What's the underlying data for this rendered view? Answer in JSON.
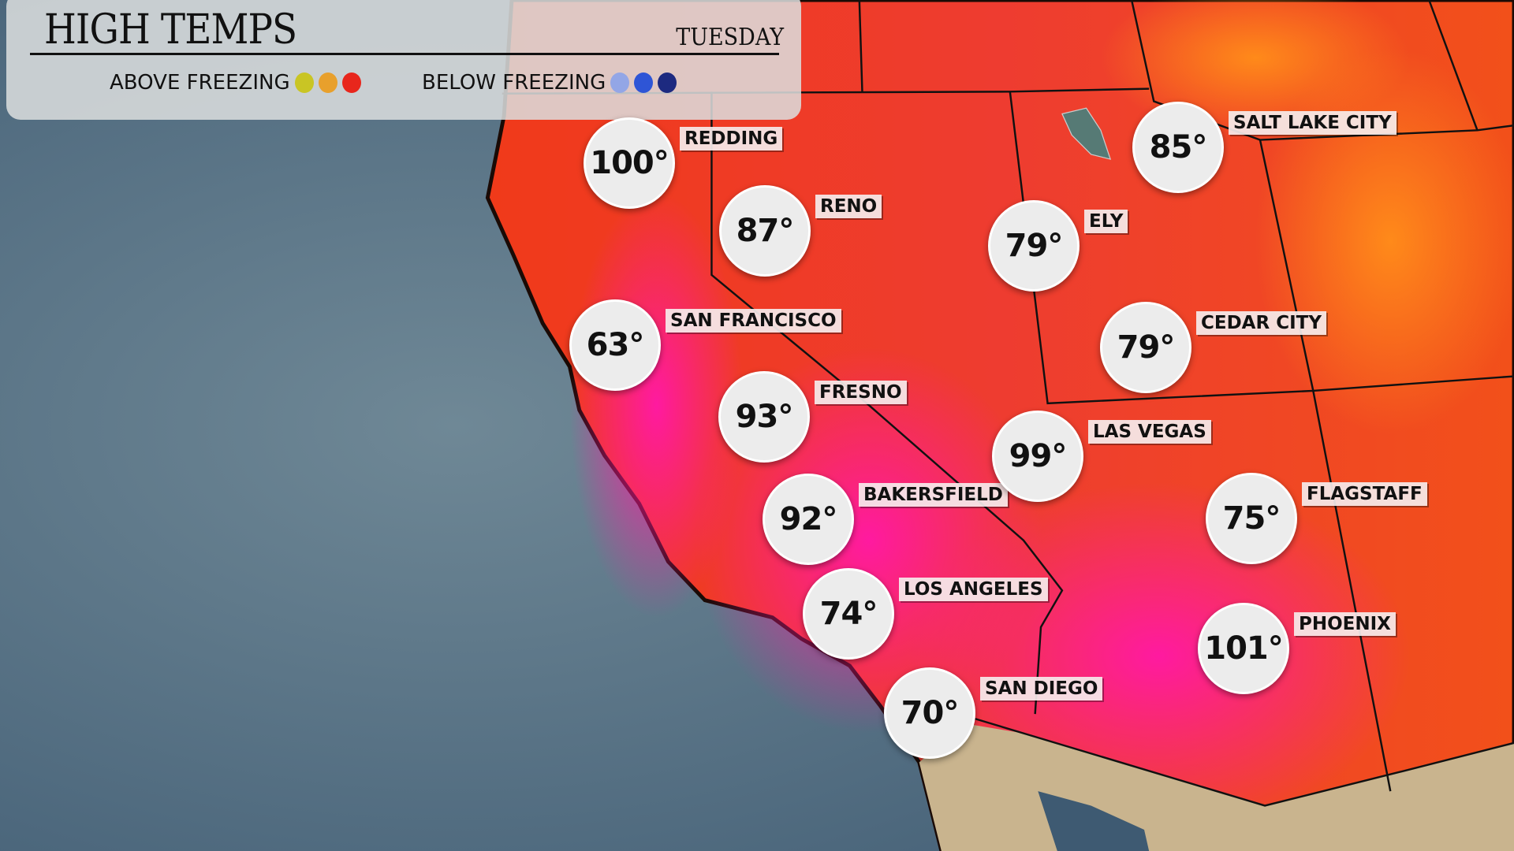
{
  "header": {
    "title": "HIGH TEMPS",
    "day": "TUESDAY"
  },
  "legend": {
    "above_label": "ABOVE FREEZING",
    "above_colors": [
      "#c9c524",
      "#e8a02c",
      "#e8261c"
    ],
    "below_label": "BELOW FREEZING",
    "below_colors": [
      "#93a6e6",
      "#2e55d6",
      "#1d2a80"
    ]
  },
  "cities": [
    {
      "name": "REDDING",
      "temp": "100°"
    },
    {
      "name": "RENO",
      "temp": "87°"
    },
    {
      "name": "SAN FRANCISCO",
      "temp": "63°"
    },
    {
      "name": "FRESNO",
      "temp": "93°"
    },
    {
      "name": "BAKERSFIELD",
      "temp": "92°"
    },
    {
      "name": "LOS ANGELES",
      "temp": "74°"
    },
    {
      "name": "SAN DIEGO",
      "temp": "70°"
    },
    {
      "name": "ELY",
      "temp": "79°"
    },
    {
      "name": "SALT LAKE CITY",
      "temp": "85°"
    },
    {
      "name": "CEDAR CITY",
      "temp": "79°"
    },
    {
      "name": "LAS VEGAS",
      "temp": "99°"
    },
    {
      "name": "FLAGSTAFF",
      "temp": "75°"
    },
    {
      "name": "PHOENIX",
      "temp": "101°"
    }
  ]
}
